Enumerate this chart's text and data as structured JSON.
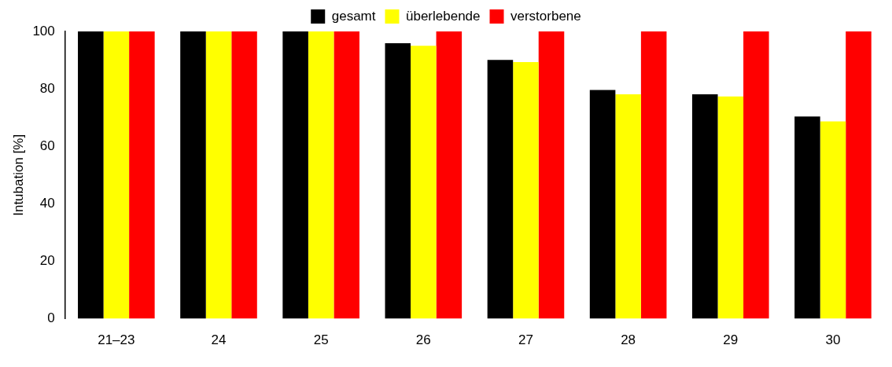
{
  "chart_data": {
    "type": "bar",
    "ylabel": "Intubation [%]",
    "categories": [
      "21–23",
      "24",
      "25",
      "26",
      "27",
      "28",
      "29",
      "30"
    ],
    "series": [
      {
        "name": "gesamt",
        "color": "#000000",
        "values": [
          100,
          100,
          100,
          95.9,
          90.1,
          79.6,
          78.1,
          70.4
        ]
      },
      {
        "name": "überlebende",
        "color": "#ffff00",
        "values": [
          100,
          100,
          100,
          95.0,
          89.3,
          78.1,
          77.4,
          68.7
        ]
      },
      {
        "name": "verstorbene",
        "color": "#ff0000",
        "values": [
          100,
          100,
          100,
          100,
          100,
          100,
          100,
          100
        ]
      }
    ],
    "ylim": [
      0,
      100
    ],
    "yticks": [
      0,
      20,
      40,
      60,
      80,
      100
    ],
    "grid": false,
    "legend": "top"
  }
}
